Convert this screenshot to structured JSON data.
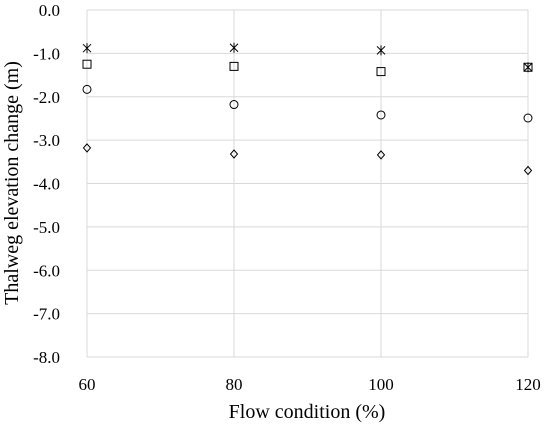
{
  "chart_data": {
    "type": "scatter",
    "title": "",
    "xlabel": "Flow condition (%)",
    "ylabel": "Thalweg elevation change (m)",
    "x": [
      60,
      80,
      100,
      120
    ],
    "xlim": [
      60,
      120
    ],
    "ylim": [
      -8.0,
      0.0
    ],
    "x_ticks": [
      "60",
      "80",
      "100",
      "120"
    ],
    "y_ticks": [
      "0.0",
      "-1.0",
      "-2.0",
      "-3.0",
      "-4.0",
      "-5.0",
      "-6.0",
      "-7.0",
      "-8.0"
    ],
    "grid": true,
    "legend": "none",
    "series": [
      {
        "marker": "star",
        "values": [
          -0.88,
          -0.87,
          -0.93,
          -1.32
        ]
      },
      {
        "marker": "square",
        "values": [
          -1.25,
          -1.3,
          -1.42,
          -1.32
        ]
      },
      {
        "marker": "circle",
        "values": [
          -1.83,
          -2.18,
          -2.42,
          -2.49
        ]
      },
      {
        "marker": "diamond",
        "values": [
          -3.18,
          -3.32,
          -3.34,
          -3.7
        ]
      }
    ]
  }
}
